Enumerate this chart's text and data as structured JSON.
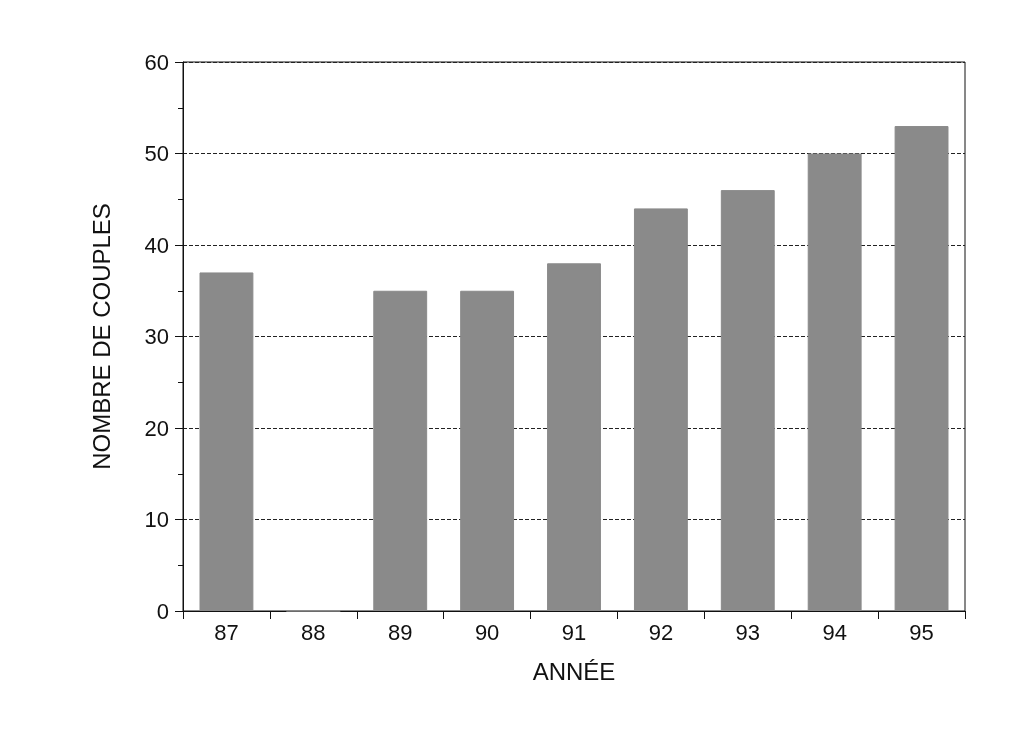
{
  "chart_data": {
    "type": "bar",
    "xlabel": "ANNÉE",
    "ylabel": "NOMBRE DE COUPLES",
    "categories": [
      "87",
      "88",
      "89",
      "90",
      "91",
      "92",
      "93",
      "94",
      "95"
    ],
    "values": [
      37,
      0,
      35,
      35,
      38,
      44,
      46,
      50,
      53
    ],
    "color": "#8a8a8a",
    "ylim": [
      0,
      60
    ],
    "yticks": [
      0,
      10,
      20,
      30,
      40,
      50,
      60
    ],
    "grid": "y",
    "line_style": "dashed"
  }
}
